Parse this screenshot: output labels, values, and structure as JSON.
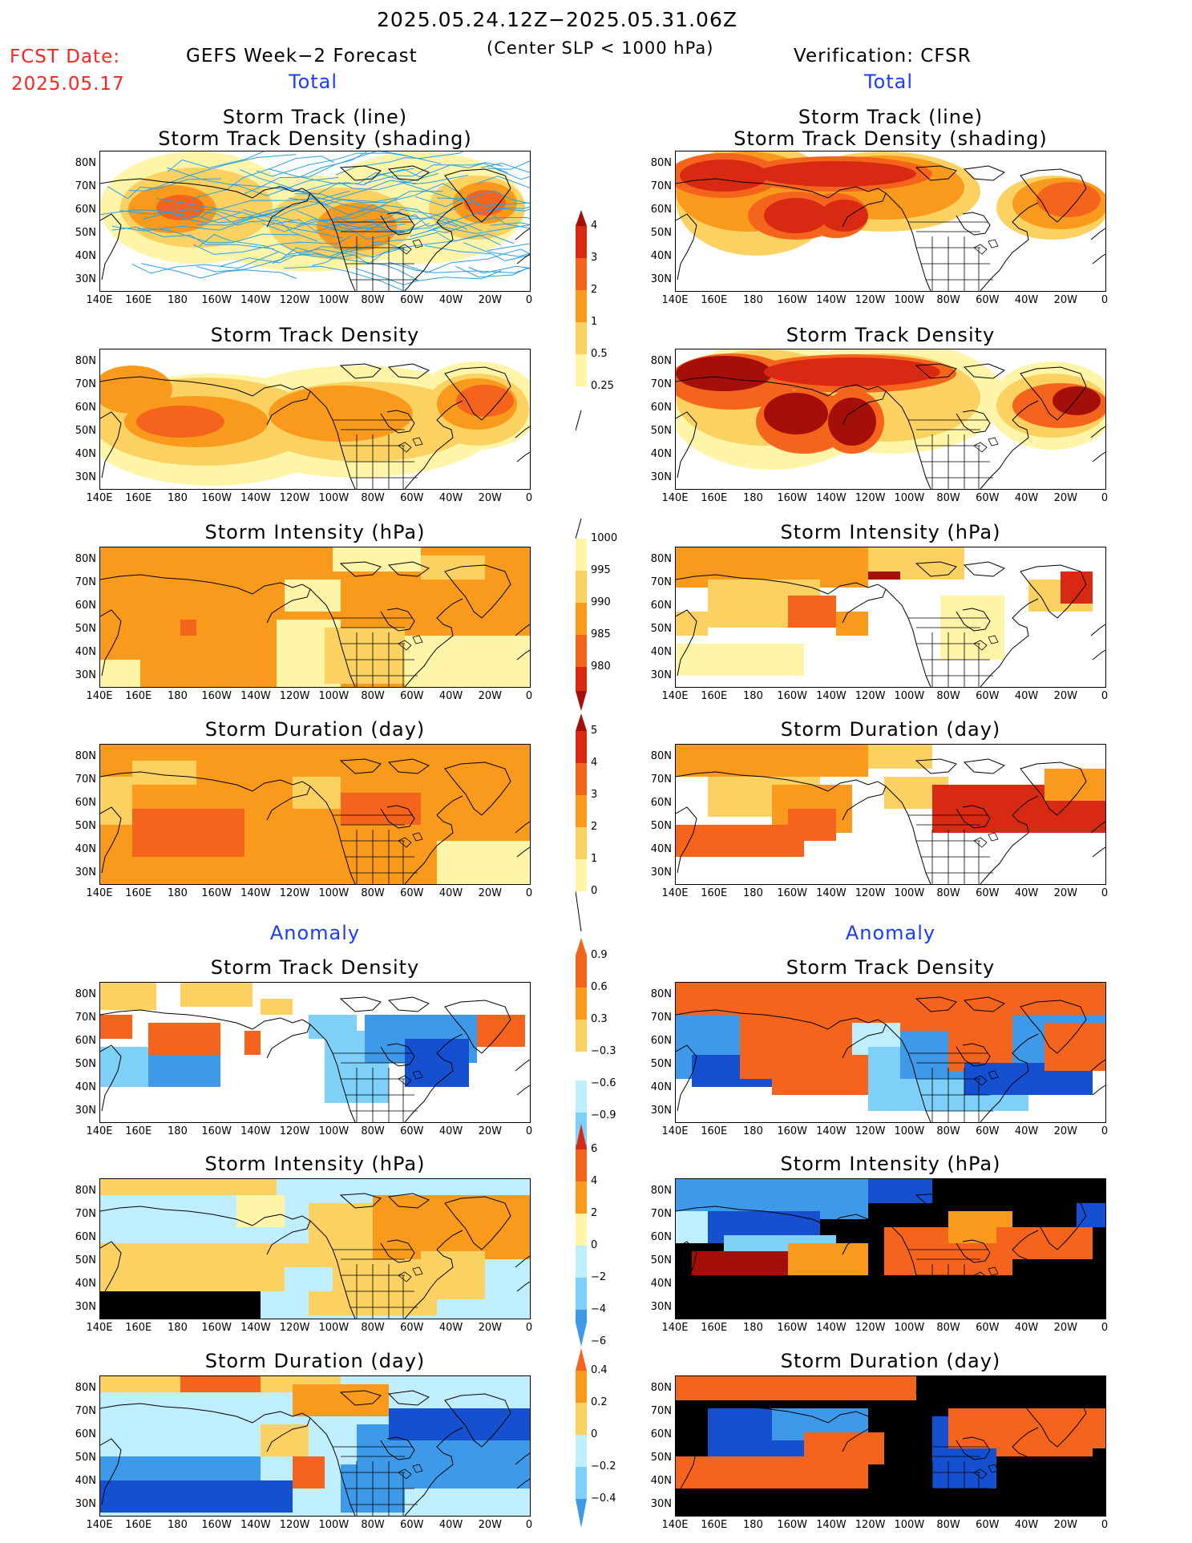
{
  "header": {
    "period": "2025.05.24.12Z−2025.05.31.06Z",
    "criterion": "(Center SLP < 1000 hPa)",
    "fcst_label": "FCST Date:",
    "fcst_date": "2025.05.17",
    "left_title": "GEFS Week−2 Forecast",
    "right_title": "Verification: CFSR",
    "total_label": "Total",
    "anomaly_label": "Anomaly"
  },
  "panel_titles": {
    "track_line": "Storm Track (line)",
    "track_shading": "Storm Track Density (shading)",
    "density": "Storm Track Density",
    "intensity": "Storm Intensity (hPa)",
    "duration": "Storm Duration (day)"
  },
  "axes": {
    "lat_labels": [
      "80N",
      "70N",
      "60N",
      "50N",
      "40N",
      "30N"
    ],
    "lon_labels": [
      "140E",
      "160E",
      "180",
      "160W",
      "140W",
      "120W",
      "100W",
      "80W",
      "60W",
      "40W",
      "20W",
      "0"
    ]
  },
  "colorbars": {
    "density_total": [
      "4",
      "3",
      "2",
      "1",
      "0.5",
      "0.25"
    ],
    "intensity_total": [
      "1000",
      "995",
      "990",
      "985",
      "980"
    ],
    "duration_total": [
      "5",
      "4",
      "3",
      "2",
      "1",
      "0"
    ],
    "density_anom": [
      "0.9",
      "0.6",
      "0.3",
      "−0.3",
      "−0.6",
      "−0.9"
    ],
    "intensity_anom": [
      "6",
      "4",
      "2",
      "0",
      "−2",
      "−4",
      "−6"
    ],
    "duration_anom": [
      "0.4",
      "0.2",
      "0",
      "−0.2",
      "−0.4"
    ]
  },
  "colors": {
    "c1": "#fff5a8",
    "c2": "#fbd262",
    "c3": "#f99a1c",
    "c4": "#f5641c",
    "c5": "#d82a12",
    "c6": "#a50f0a",
    "b1": "#bfeeff",
    "b2": "#7fd0f8",
    "b3": "#3e9ae8",
    "b4": "#1450d0",
    "track_line": "#28a0e6",
    "title_blue": "#1a3cff",
    "fcst_red": "#ff2222"
  }
}
